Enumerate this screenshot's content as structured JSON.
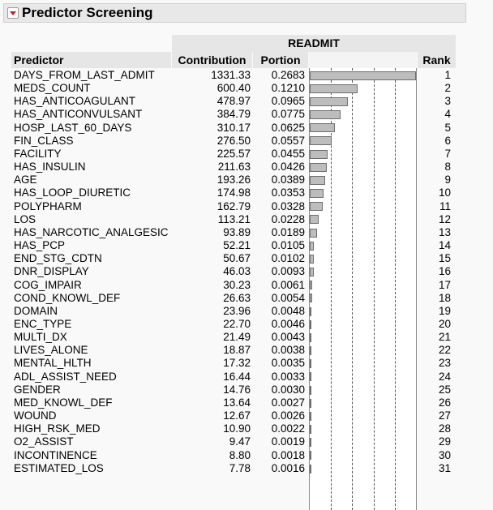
{
  "outline": {
    "title": "Predictor Screening"
  },
  "table": {
    "group_header": "READMIT",
    "columns": {
      "predictor": "Predictor",
      "contribution": "Contribution",
      "portion": "Portion",
      "rank": "Rank"
    },
    "rows": [
      {
        "predictor": "DAYS_FROM_LAST_ADMIT",
        "contribution": "1331.33",
        "portion": "0.2683",
        "rank": "1"
      },
      {
        "predictor": "MEDS_COUNT",
        "contribution": "600.40",
        "portion": "0.1210",
        "rank": "2"
      },
      {
        "predictor": "HAS_ANTICOAGULANT",
        "contribution": "478.97",
        "portion": "0.0965",
        "rank": "3"
      },
      {
        "predictor": "HAS_ANTICONVULSANT",
        "contribution": "384.79",
        "portion": "0.0775",
        "rank": "4"
      },
      {
        "predictor": "HOSP_LAST_60_DAYS",
        "contribution": "310.17",
        "portion": "0.0625",
        "rank": "5"
      },
      {
        "predictor": "FIN_CLASS",
        "contribution": "276.50",
        "portion": "0.0557",
        "rank": "6"
      },
      {
        "predictor": "FACILITY",
        "contribution": "225.57",
        "portion": "0.0455",
        "rank": "7"
      },
      {
        "predictor": "HAS_INSULIN",
        "contribution": "211.63",
        "portion": "0.0426",
        "rank": "8"
      },
      {
        "predictor": "AGE",
        "contribution": "193.26",
        "portion": "0.0389",
        "rank": "9"
      },
      {
        "predictor": "HAS_LOOP_DIURETIC",
        "contribution": "174.98",
        "portion": "0.0353",
        "rank": "10"
      },
      {
        "predictor": "POLYPHARM",
        "contribution": "162.79",
        "portion": "0.0328",
        "rank": "11"
      },
      {
        "predictor": "LOS",
        "contribution": "113.21",
        "portion": "0.0228",
        "rank": "12"
      },
      {
        "predictor": "HAS_NARCOTIC_ANALGESIC",
        "contribution": "93.89",
        "portion": "0.0189",
        "rank": "13"
      },
      {
        "predictor": "HAS_PCP",
        "contribution": "52.21",
        "portion": "0.0105",
        "rank": "14"
      },
      {
        "predictor": "END_STG_CDTN",
        "contribution": "50.67",
        "portion": "0.0102",
        "rank": "15"
      },
      {
        "predictor": "DNR_DISPLAY",
        "contribution": "46.03",
        "portion": "0.0093",
        "rank": "16"
      },
      {
        "predictor": "COG_IMPAIR",
        "contribution": "30.23",
        "portion": "0.0061",
        "rank": "17"
      },
      {
        "predictor": "COND_KNOWL_DEF",
        "contribution": "26.63",
        "portion": "0.0054",
        "rank": "18"
      },
      {
        "predictor": "DOMAIN",
        "contribution": "23.96",
        "portion": "0.0048",
        "rank": "19"
      },
      {
        "predictor": "ENC_TYPE",
        "contribution": "22.70",
        "portion": "0.0046",
        "rank": "20"
      },
      {
        "predictor": "MULTI_DX",
        "contribution": "21.49",
        "portion": "0.0043",
        "rank": "21"
      },
      {
        "predictor": "LIVES_ALONE",
        "contribution": "18.87",
        "portion": "0.0038",
        "rank": "22"
      },
      {
        "predictor": "MENTAL_HLTH",
        "contribution": "17.32",
        "portion": "0.0035",
        "rank": "23"
      },
      {
        "predictor": "ADL_ASSIST_NEED",
        "contribution": "16.44",
        "portion": "0.0033",
        "rank": "24"
      },
      {
        "predictor": "GENDER",
        "contribution": "14.76",
        "portion": "0.0030",
        "rank": "25"
      },
      {
        "predictor": "MED_KNOWL_DEF",
        "contribution": "13.64",
        "portion": "0.0027",
        "rank": "26"
      },
      {
        "predictor": "WOUND",
        "contribution": "12.67",
        "portion": "0.0026",
        "rank": "27"
      },
      {
        "predictor": "HIGH_RSK_MED",
        "contribution": "10.90",
        "portion": "0.0022",
        "rank": "28"
      },
      {
        "predictor": "O2_ASSIST",
        "contribution": "9.47",
        "portion": "0.0019",
        "rank": "29"
      },
      {
        "predictor": "INCONTINENCE",
        "contribution": "8.80",
        "portion": "0.0018",
        "rank": "30"
      },
      {
        "predictor": "ESTIMATED_LOS",
        "contribution": "7.78",
        "portion": "0.0016",
        "rank": "31"
      }
    ]
  },
  "portion_chart": {
    "max_portion": 0.2683,
    "reference_lines": [
      0.2,
      0.4,
      0.6,
      0.8
    ]
  },
  "colors": {
    "bar_fill": "#bdbdbd",
    "bar_border": "#6e6e6e",
    "header_bg": "#e6e6e6",
    "disclosure": "#d11a1a"
  }
}
